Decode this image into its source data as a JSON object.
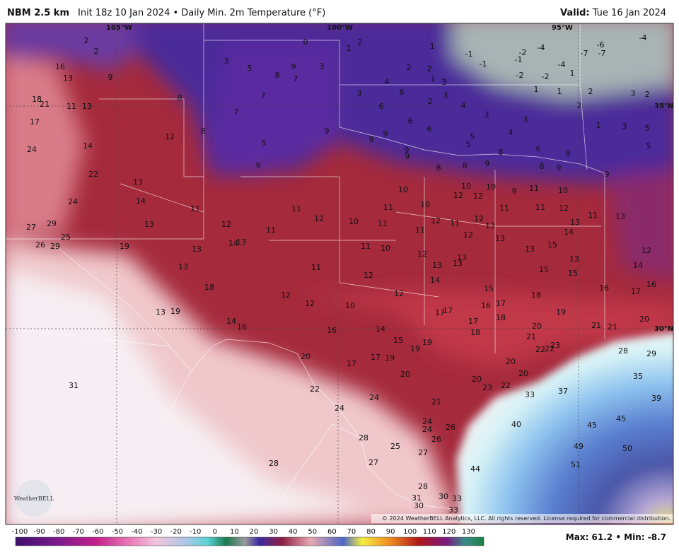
{
  "header": {
    "model": "NBM 2.5 km",
    "description": "Init 18z 10 Jan 2024 • Daily Min. 2m Temperature (°F)",
    "valid_label": "Valid:",
    "valid": "Tue 16 Jan 2024"
  },
  "graticule": {
    "lon": [
      "105°W",
      "100°W",
      "95°W"
    ],
    "lat": [
      "35°N",
      "30°N"
    ]
  },
  "map_labels": [
    2,
    2,
    3,
    5,
    8,
    9,
    3,
    7,
    7,
    7,
    16,
    13,
    9,
    8,
    18,
    21,
    11,
    13,
    17,
    24,
    14,
    12,
    8,
    22,
    13,
    24,
    14,
    13,
    11,
    27,
    29,
    25,
    26,
    29,
    19,
    13,
    14,
    13,
    12,
    11,
    11,
    12,
    10,
    11,
    11,
    5,
    9,
    9,
    13,
    18,
    13,
    19,
    14,
    16,
    11,
    11,
    10,
    12,
    12,
    10,
    12,
    12,
    16,
    14,
    20,
    17,
    17,
    19,
    15,
    19,
    20,
    22,
    24,
    24,
    21,
    31,
    28,
    28,
    25,
    27,
    27,
    24,
    24,
    26,
    26,
    28,
    30,
    31,
    30,
    33,
    33,
    44,
    40,
    33,
    37,
    45,
    45,
    49,
    50,
    51,
    35,
    39,
    28,
    29,
    20,
    21,
    21,
    21,
    20,
    22,
    22,
    23,
    20,
    20,
    20,
    23,
    22,
    18,
    18,
    17,
    17,
    16,
    15,
    18,
    19,
    15,
    15,
    15,
    13,
    13,
    16,
    17,
    16,
    14,
    12,
    13,
    11,
    12,
    14,
    13,
    11,
    11,
    11,
    9,
    10,
    10,
    10,
    12,
    12,
    12,
    11,
    12,
    13,
    13,
    12,
    11,
    10,
    10,
    12,
    13,
    13,
    13,
    14,
    17,
    17,
    19,
    8,
    8,
    9,
    8,
    8,
    9,
    8,
    9,
    6,
    4,
    5,
    5,
    6,
    6,
    6,
    9,
    9,
    9,
    9,
    3,
    4,
    6,
    2,
    2,
    1,
    3,
    3,
    2,
    4,
    3,
    3,
    2,
    1,
    1,
    0,
    -1,
    -1,
    -2,
    -1,
    -4,
    -2,
    -2,
    -4,
    -7,
    -6,
    -7,
    -4,
    1,
    1,
    1,
    2,
    3,
    2,
    2,
    1,
    3,
    5,
    5
  ],
  "logo": "WeatherBELL",
  "copyright": "© 2024 WeatherBELL Analytics, LLC. All rights reserved. License required for commercial distribution.",
  "colorbar": {
    "ticks": [
      -100,
      -90,
      -80,
      -70,
      -60,
      -50,
      -40,
      -30,
      -20,
      -10,
      0,
      10,
      20,
      30,
      40,
      50,
      60,
      70,
      80,
      90,
      100,
      110,
      120,
      130
    ]
  },
  "stats": "Max: 61.2 • Min: -8.7"
}
